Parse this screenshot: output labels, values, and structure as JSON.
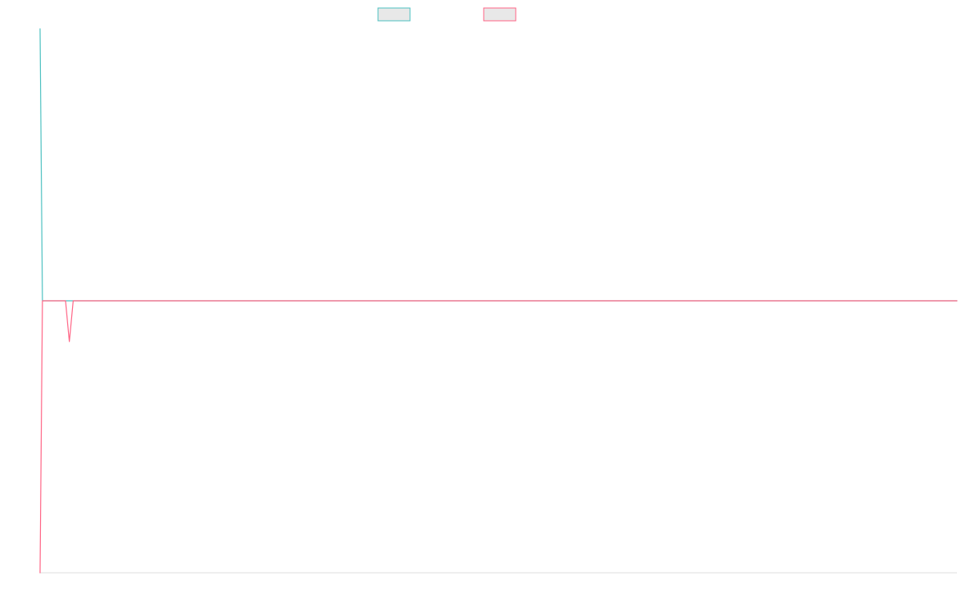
{
  "chart_data": {
    "type": "line",
    "title": "",
    "xlabel": "",
    "ylabel": "",
    "grid": false,
    "legend_position": "top-center",
    "x": [
      0,
      1,
      2,
      3,
      4,
      5,
      6,
      7,
      8,
      9,
      10,
      11,
      12,
      13,
      14,
      15,
      16,
      17,
      18,
      19,
      20,
      100
    ],
    "ylim": [
      -1,
      1
    ],
    "series": [
      {
        "color": "#4bc0c0",
        "fill": "#e8e8e8",
        "values": [
          1,
          0,
          0,
          0,
          0,
          0,
          0,
          0,
          0,
          0,
          0,
          0,
          0,
          0,
          0,
          0,
          0,
          0,
          0,
          0,
          0,
          0
        ]
      },
      {
        "color": "#ff6384",
        "fill": "#e8e8e8",
        "values": [
          -1,
          0,
          0,
          0,
          0,
          0,
          0,
          0,
          -0.15,
          0,
          0,
          0,
          0,
          0,
          0,
          0,
          0,
          0,
          0,
          0,
          0,
          0
        ]
      }
    ],
    "axis_color": "#dddddd"
  }
}
